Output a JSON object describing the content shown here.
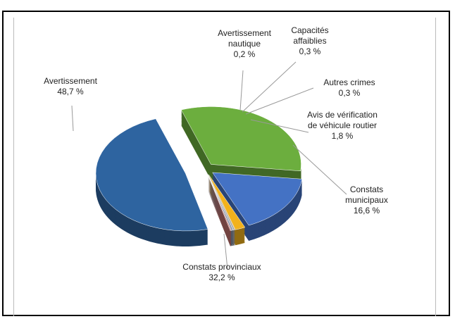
{
  "chart_data": {
    "type": "pie",
    "categories": [
      "Avertissement",
      "Constats provinciaux",
      "Constats municipaux",
      "Avis de vérification de véhicule routier",
      "Autres crimes",
      "Capacités affaiblies",
      "Avertissement nautique"
    ],
    "values": [
      48.7,
      32.2,
      16.6,
      1.8,
      0.3,
      0.3,
      0.2
    ],
    "value_labels": [
      "48,7 %",
      "32,2 %",
      "16,6 %",
      "1,8 %",
      "0,3 %",
      "0,3 %",
      "0,2 %"
    ],
    "colors": [
      "#2e64a0",
      "#6cae3e",
      "#4472c4",
      "#f2b21c",
      "#a6a6a6",
      "#7f8fa6",
      "#c0706a"
    ]
  }
}
